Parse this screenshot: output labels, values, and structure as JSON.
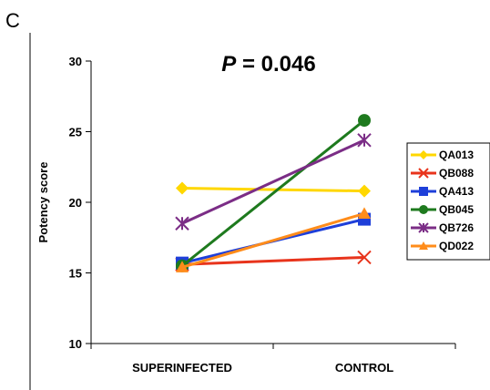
{
  "panel_label": "C",
  "chart_data": {
    "type": "line",
    "title": "P = 0.046",
    "title_parts": {
      "italic": "P",
      "rest": " = 0.046"
    },
    "ylabel": "Potency score",
    "xlabel": "",
    "categories": [
      "SUPERINFECTED",
      "CONTROL"
    ],
    "ylim": [
      10,
      30
    ],
    "yticks": [
      10,
      15,
      20,
      25,
      30
    ],
    "grid": false,
    "legend_position": "right",
    "series": [
      {
        "name": "QA013",
        "values": [
          21.0,
          20.8
        ],
        "color": "#FFD700",
        "marker": "diamond"
      },
      {
        "name": "QB088",
        "values": [
          15.6,
          16.1
        ],
        "color": "#E8341C",
        "marker": "x"
      },
      {
        "name": "QA413",
        "values": [
          15.7,
          18.8
        ],
        "color": "#1E3FD9",
        "marker": "square"
      },
      {
        "name": "QB045",
        "values": [
          15.5,
          25.8
        ],
        "color": "#1E7A1E",
        "marker": "circle"
      },
      {
        "name": "QB726",
        "values": [
          18.5,
          24.4
        ],
        "color": "#7B2D86",
        "marker": "asterisk"
      },
      {
        "name": "QD022",
        "values": [
          15.4,
          19.2
        ],
        "color": "#FF8C1A",
        "marker": "triangle"
      }
    ]
  }
}
